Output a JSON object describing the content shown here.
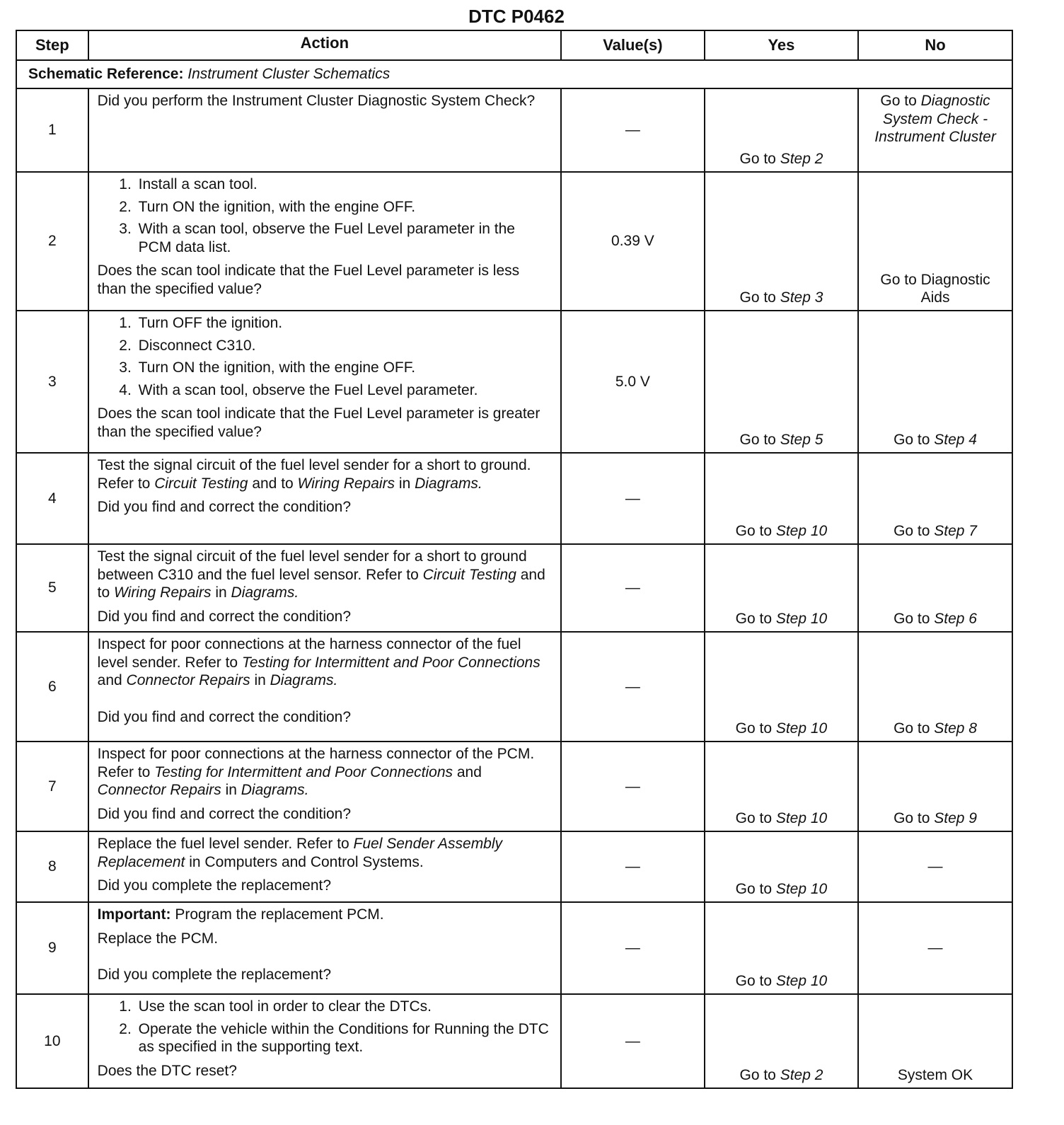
{
  "title": "DTC P0462",
  "headers": {
    "step": "Step",
    "action": "Action",
    "values": "Value(s)",
    "yes": "Yes",
    "no": "No"
  },
  "schematic": {
    "label": "Schematic Reference:",
    "value": "Instrument Cluster Schematics"
  },
  "rows": [
    {
      "step": "1",
      "value": "—",
      "action": [
        {
          "type": "p",
          "segs": [
            {
              "t": "Did you perform the Instrument Cluster Diagnostic System Check?"
            }
          ]
        }
      ],
      "yes": [
        {
          "t": "Go to "
        },
        {
          "t": "Step 2",
          "i": true
        }
      ],
      "no": [
        {
          "t": "Go to "
        },
        {
          "t": "Diagnostic System Check - Instrument Cluster",
          "i": true
        }
      ]
    },
    {
      "step": "2",
      "value": "0.39 V",
      "action": [
        {
          "type": "ol",
          "items": [
            "Install a scan tool.",
            "Turn ON the ignition, with the engine OFF.",
            "With a scan tool, observe the Fuel Level parameter in the PCM data list."
          ]
        },
        {
          "type": "p",
          "segs": [
            {
              "t": "Does the scan tool indicate that the Fuel Level parameter is less than the specified value?"
            }
          ]
        }
      ],
      "yes": [
        {
          "t": "Go to "
        },
        {
          "t": "Step 3",
          "i": true
        }
      ],
      "no": [
        {
          "t": "Go to Diagnostic Aids"
        }
      ]
    },
    {
      "step": "3",
      "value": "5.0 V",
      "action": [
        {
          "type": "ol",
          "items": [
            "Turn OFF the ignition.",
            "Disconnect C310.",
            "Turn ON the ignition, with the engine OFF.",
            "With a scan tool, observe the Fuel Level parameter."
          ]
        },
        {
          "type": "p",
          "segs": [
            {
              "t": "Does the scan tool indicate that the Fuel Level parameter is greater than the specified value?"
            }
          ]
        }
      ],
      "yes": [
        {
          "t": "Go to "
        },
        {
          "t": "Step 5",
          "i": true
        }
      ],
      "no": [
        {
          "t": "Go to "
        },
        {
          "t": "Step 4",
          "i": true
        }
      ]
    },
    {
      "step": "4",
      "value": "—",
      "action": [
        {
          "type": "p",
          "segs": [
            {
              "t": "Test the signal circuit of the fuel level sender for a short to ground. Refer to "
            },
            {
              "t": "Circuit Testing",
              "i": true
            },
            {
              "t": " and to "
            },
            {
              "t": "Wiring Repairs",
              "i": true
            },
            {
              "t": " in "
            },
            {
              "t": "Diagrams.",
              "i": true
            }
          ]
        },
        {
          "type": "p",
          "segs": [
            {
              "t": "Did you find and correct the condition?"
            }
          ]
        }
      ],
      "yes": [
        {
          "t": "Go to "
        },
        {
          "t": "Step 10",
          "i": true
        }
      ],
      "no": [
        {
          "t": "Go to "
        },
        {
          "t": "Step 7",
          "i": true
        }
      ]
    },
    {
      "step": "5",
      "value": "—",
      "action": [
        {
          "type": "p",
          "segs": [
            {
              "t": "Test the signal circuit of the fuel level sender for a short to ground between C310 and the fuel level sensor. Refer to "
            },
            {
              "t": "Circuit Testing",
              "i": true
            },
            {
              "t": " and to "
            },
            {
              "t": "Wiring Repairs",
              "i": true
            },
            {
              "t": " in "
            },
            {
              "t": "Diagrams.",
              "i": true
            }
          ]
        },
        {
          "type": "p",
          "segs": [
            {
              "t": "Did you find and correct the condition?"
            }
          ]
        }
      ],
      "yes": [
        {
          "t": "Go to "
        },
        {
          "t": "Step 10",
          "i": true
        }
      ],
      "no": [
        {
          "t": "Go to "
        },
        {
          "t": "Step 6",
          "i": true
        }
      ]
    },
    {
      "step": "6",
      "value": "—",
      "action": [
        {
          "type": "p",
          "segs": [
            {
              "t": "Inspect for poor connections at the harness connector of the fuel level sender. Refer to "
            },
            {
              "t": "Testing for Intermittent and Poor Connections",
              "i": true
            },
            {
              "t": " and "
            },
            {
              "t": "Connector Repairs",
              "i": true
            },
            {
              "t": " in "
            },
            {
              "t": "Diagrams.",
              "i": true
            }
          ]
        },
        {
          "type": "spacer"
        },
        {
          "type": "p",
          "segs": [
            {
              "t": "Did you find and correct the condition?"
            }
          ]
        }
      ],
      "yes": [
        {
          "t": "Go to "
        },
        {
          "t": "Step 10",
          "i": true
        }
      ],
      "no": [
        {
          "t": "Go to "
        },
        {
          "t": "Step 8",
          "i": true
        }
      ]
    },
    {
      "step": "7",
      "value": "—",
      "action": [
        {
          "type": "p",
          "segs": [
            {
              "t": "Inspect for poor connections at the harness connector of the PCM. Refer to "
            },
            {
              "t": "Testing for Intermittent and Poor Connections",
              "i": true
            },
            {
              "t": " and "
            },
            {
              "t": "Connector Repairs",
              "i": true
            },
            {
              "t": " in "
            },
            {
              "t": "Diagrams.",
              "i": true
            }
          ]
        },
        {
          "type": "p",
          "segs": [
            {
              "t": "Did you find and correct the condition?"
            }
          ]
        }
      ],
      "yes": [
        {
          "t": "Go to "
        },
        {
          "t": "Step 10",
          "i": true
        }
      ],
      "no": [
        {
          "t": "Go to "
        },
        {
          "t": "Step 9",
          "i": true
        }
      ]
    },
    {
      "step": "8",
      "value": "—",
      "action": [
        {
          "type": "p",
          "segs": [
            {
              "t": "Replace the fuel level sender. Refer to "
            },
            {
              "t": "Fuel Sender Assembly Replacement",
              "i": true
            },
            {
              "t": " in Computers and Control Systems."
            }
          ]
        },
        {
          "type": "p",
          "segs": [
            {
              "t": "Did you complete the replacement?"
            }
          ]
        }
      ],
      "yes": [
        {
          "t": "Go to "
        },
        {
          "t": "Step 10",
          "i": true
        }
      ],
      "no": [
        {
          "t": "—"
        }
      ]
    },
    {
      "step": "9",
      "value": "—",
      "action": [
        {
          "type": "p",
          "segs": [
            {
              "t": "Important:",
              "b": true
            },
            {
              "t": " Program the replacement PCM."
            }
          ]
        },
        {
          "type": "p",
          "segs": [
            {
              "t": "Replace the PCM."
            }
          ]
        },
        {
          "type": "spacer"
        },
        {
          "type": "p",
          "segs": [
            {
              "t": "Did you complete the replacement?"
            }
          ]
        }
      ],
      "yes": [
        {
          "t": "Go to "
        },
        {
          "t": "Step 10",
          "i": true
        }
      ],
      "no": [
        {
          "t": "—"
        }
      ]
    },
    {
      "step": "10",
      "value": "—",
      "action": [
        {
          "type": "ol",
          "items": [
            "Use the scan tool in order to clear the DTCs.",
            "Operate the vehicle within the Conditions for Running the DTC as specified in the supporting text."
          ]
        },
        {
          "type": "p",
          "segs": [
            {
              "t": "Does the DTC reset?"
            }
          ]
        }
      ],
      "yes": [
        {
          "t": "Go to "
        },
        {
          "t": "Step 2",
          "i": true
        }
      ],
      "no": [
        {
          "t": "System OK"
        }
      ]
    }
  ]
}
